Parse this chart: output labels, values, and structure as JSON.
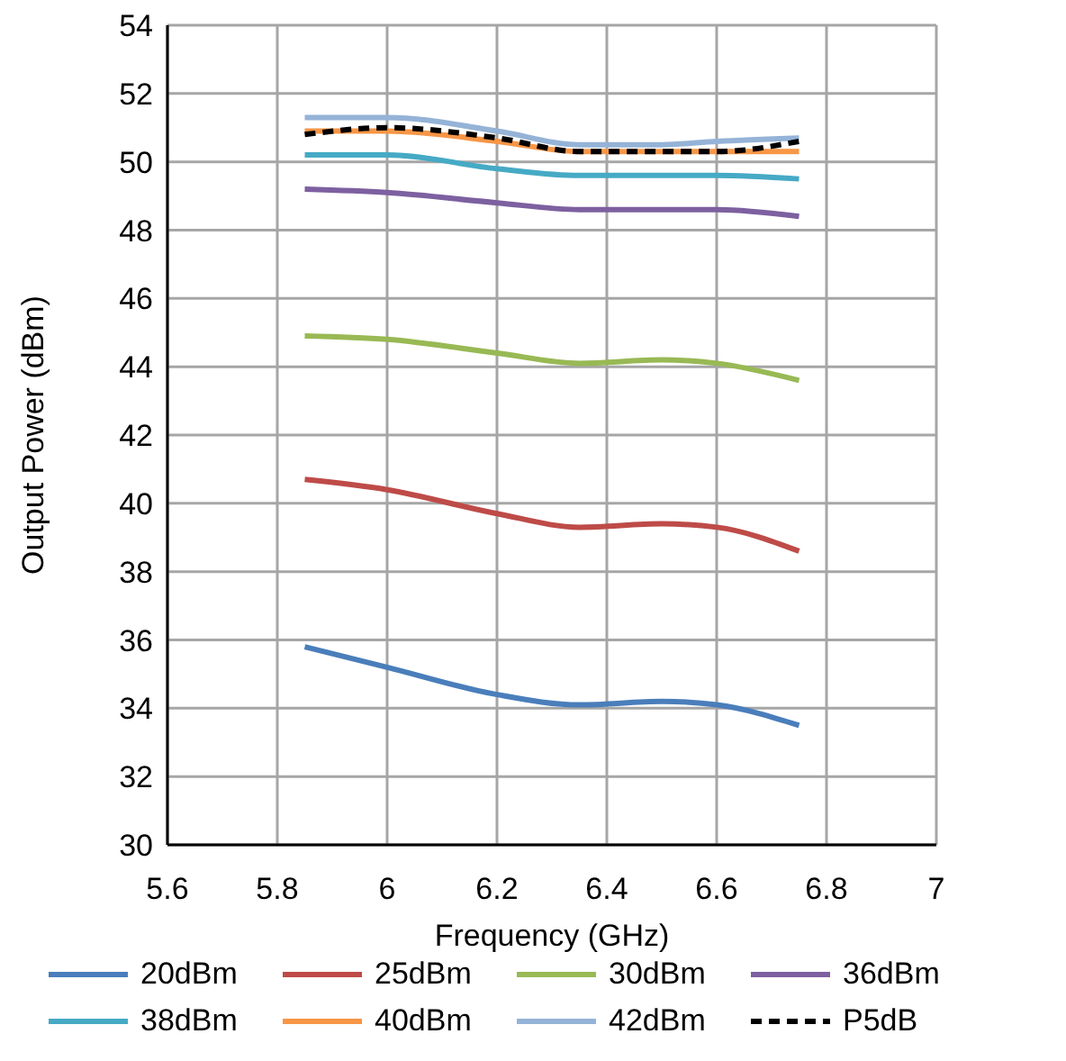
{
  "chart_data": {
    "type": "line",
    "xlabel": "Frequency (GHz)",
    "ylabel": "Output Power (dBm)",
    "x": [
      5.85,
      6.0,
      6.2,
      6.35,
      6.5,
      6.6,
      6.75
    ],
    "xlim": [
      5.6,
      7
    ],
    "xticks": [
      5.6,
      5.8,
      6,
      6.2,
      6.4,
      6.6,
      6.8,
      7
    ],
    "ylim": [
      30,
      54
    ],
    "yticks": [
      30,
      32,
      34,
      36,
      38,
      40,
      42,
      44,
      46,
      48,
      50,
      52,
      54
    ],
    "grid": true,
    "legend": "bottom",
    "marker": "none",
    "line_style": "solid",
    "series": [
      {
        "name": "20dBm",
        "color": "#4a7ebb",
        "values": [
          35.8,
          35.2,
          34.4,
          34.1,
          34.2,
          34.1,
          33.5
        ]
      },
      {
        "name": "25dBm",
        "color": "#be4b48",
        "values": [
          40.7,
          40.4,
          39.7,
          39.3,
          39.4,
          39.3,
          38.6
        ]
      },
      {
        "name": "30dBm",
        "color": "#98b954",
        "values": [
          44.9,
          44.8,
          44.4,
          44.1,
          44.2,
          44.1,
          43.6
        ]
      },
      {
        "name": "36dBm",
        "color": "#7d60a0",
        "values": [
          49.2,
          49.1,
          48.8,
          48.6,
          48.6,
          48.6,
          48.4
        ]
      },
      {
        "name": "38dBm",
        "color": "#46aac5",
        "values": [
          50.2,
          50.2,
          49.8,
          49.6,
          49.6,
          49.6,
          49.5
        ]
      },
      {
        "name": "40dBm",
        "color": "#f79646",
        "values": [
          50.9,
          50.9,
          50.6,
          50.3,
          50.3,
          50.3,
          50.3
        ]
      },
      {
        "name": "42dBm",
        "color": "#95b3d7",
        "values": [
          51.3,
          51.3,
          50.9,
          50.5,
          50.5,
          50.6,
          50.7
        ]
      },
      {
        "name": "P5dB",
        "color": "#000000",
        "line_style": "dashed",
        "values": [
          50.8,
          51.0,
          50.7,
          50.3,
          50.3,
          50.3,
          50.6
        ]
      }
    ]
  }
}
